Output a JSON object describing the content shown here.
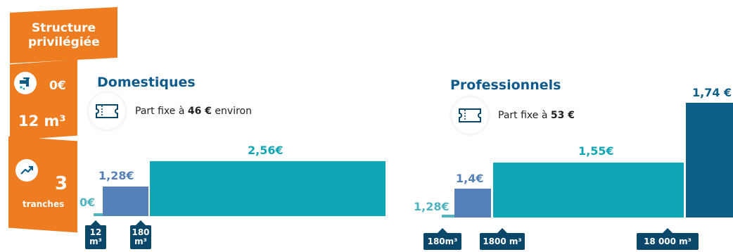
{
  "sidebar": {
    "title_line1": "Structure",
    "title_line2": "privilégiée",
    "free_price": "0€",
    "free_volume": "12 m³",
    "tranches_count": "3",
    "tranches_label": "tranches",
    "icons": [
      "water-tap-icon",
      "trend-up-icon"
    ]
  },
  "domestiques": {
    "title": "Domestiques",
    "fixe_prefix": "Part fixe à ",
    "fixe_amount": "46 €",
    "fixe_suffix": " environ",
    "prices": [
      "0€",
      "1,28€",
      "2,56€"
    ],
    "thresholds": [
      {
        "line1": "12",
        "line2": "m³"
      },
      {
        "line1": "180",
        "line2": "m³"
      }
    ]
  },
  "professionnels": {
    "title": "Professionnels",
    "fixe_prefix": "Part fixe à ",
    "fixe_amount": "53 €",
    "prices": [
      "1,28€",
      "1,4€",
      "1,55€",
      "1,74 €"
    ],
    "thresholds": [
      "180m³",
      "1800 m³",
      "18 000 m³"
    ]
  },
  "colors": {
    "orange": "#ee7d22",
    "navy": "#0b4768",
    "title_blue": "#0f5b8c",
    "teal": "#0ea5b5",
    "steel_blue": "#5580b8",
    "light_teal": "#4fb3c0",
    "dark_teal": "#0e5f87"
  }
}
